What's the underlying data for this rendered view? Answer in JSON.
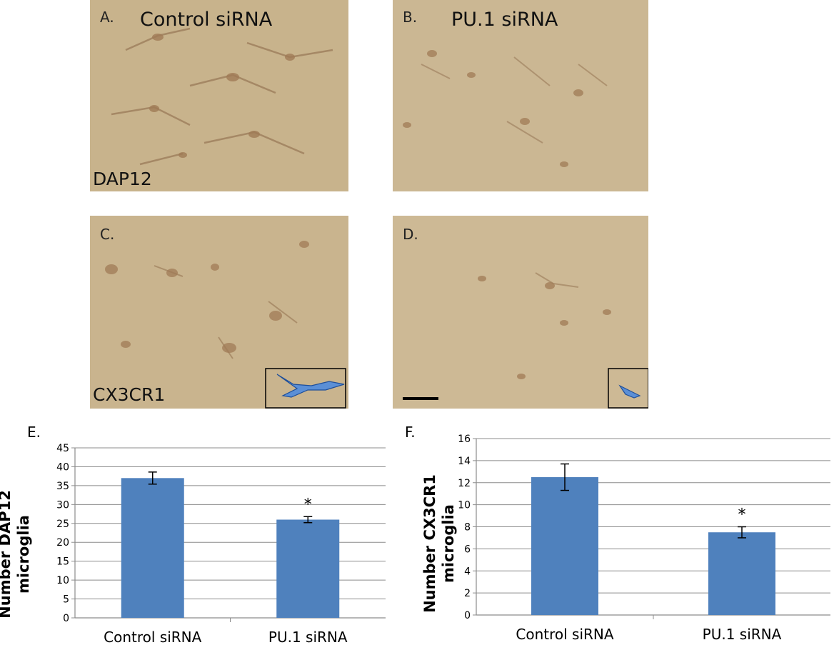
{
  "panels": [
    {
      "letter": "A.",
      "title": "Control siRNA",
      "marker": "DAP12"
    },
    {
      "letter": "B.",
      "title": "PU.1 siRNA"
    },
    {
      "letter": "C.",
      "marker": "CX3CR1"
    },
    {
      "letter": "D."
    }
  ],
  "colors": {
    "bar": "#4f81bd",
    "tissue": "#c9b48e",
    "stain": "#8a6a4a",
    "trace": "#5b8fd6"
  },
  "chart_data": [
    {
      "type": "bar",
      "panel_letter": "E.",
      "categories": [
        "Control siRNA",
        "PU.1 siRNA"
      ],
      "values": [
        37,
        26
      ],
      "errors": [
        1.6,
        0.8
      ],
      "annotations": [
        "",
        "*"
      ],
      "ylabel_line1": "Number DAP12",
      "ylabel_line2": "microglia",
      "ylim": [
        0,
        45
      ],
      "yticks": [
        "0",
        "5",
        "10",
        "15",
        "20",
        "25",
        "30",
        "35",
        "40",
        "45"
      ],
      "grid": true
    },
    {
      "type": "bar",
      "panel_letter": "F.",
      "categories": [
        "Control siRNA",
        "PU.1 siRNA"
      ],
      "values": [
        12.5,
        7.5
      ],
      "errors": [
        1.2,
        0.5
      ],
      "annotations": [
        "",
        "*"
      ],
      "ylabel_line1": "Number CX3CR1",
      "ylabel_line2": "microglia",
      "ylim": [
        0,
        16
      ],
      "yticks": [
        "0",
        "2",
        "4",
        "6",
        "8",
        "10",
        "12",
        "14",
        "16"
      ],
      "grid": true
    }
  ]
}
